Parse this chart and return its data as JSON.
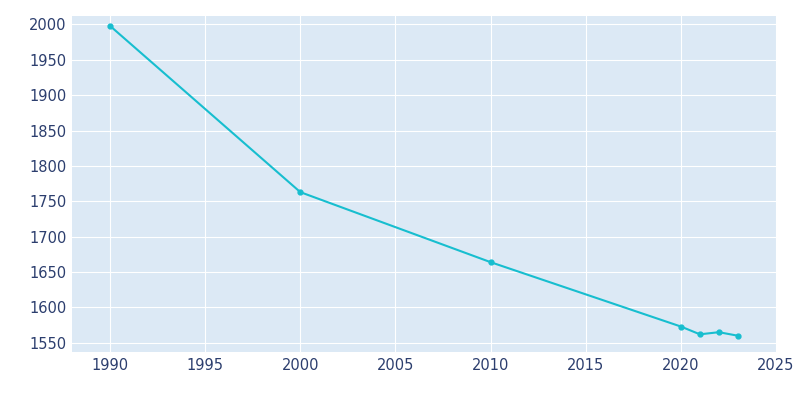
{
  "years": [
    1990,
    2000,
    2010,
    2020,
    2021,
    2022,
    2023
  ],
  "population": [
    1998,
    1763,
    1664,
    1573,
    1562,
    1565,
    1560
  ],
  "line_color": "#17becf",
  "marker_color": "#17becf",
  "axes_background_color": "#dce9f5",
  "fig_background_color": "#ffffff",
  "grid_color": "#ffffff",
  "tick_label_color": "#2c3e6e",
  "xlim": [
    1988,
    2025
  ],
  "ylim": [
    1537,
    2012
  ],
  "yticks": [
    1550,
    1600,
    1650,
    1700,
    1750,
    1800,
    1850,
    1900,
    1950,
    2000
  ],
  "xticks": [
    1990,
    1995,
    2000,
    2005,
    2010,
    2015,
    2020,
    2025
  ],
  "figsize": [
    8.0,
    4.0
  ],
  "dpi": 100
}
